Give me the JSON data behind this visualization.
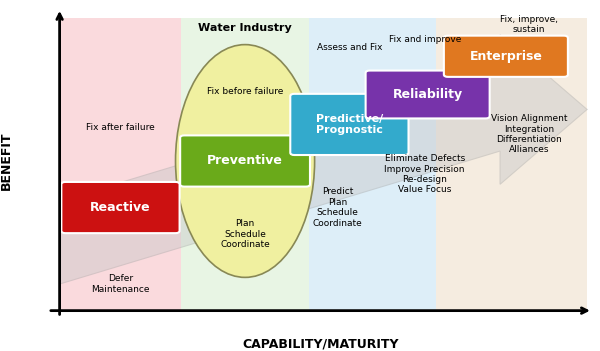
{
  "fig_width": 6.0,
  "fig_height": 3.51,
  "dpi": 100,
  "bg_color": "#ffffff",
  "zone_colors": [
    "#fadadd",
    "#e8f5e4",
    "#ddeef8",
    "#f5ece0"
  ],
  "arrow_color": "#c8c8c8",
  "arrow_edge": "#aaaaaa",
  "reactive_color": "#cc1111",
  "preventive_color": "#6aaa1a",
  "predictive_color": "#33aacc",
  "reliability_color": "#7733aa",
  "enterprise_color": "#e07820",
  "ellipse_color": "#f0f0a0",
  "ellipse_edge": "#888855",
  "xlabel": "CAPABILITY/MATURITY",
  "ylabel": "BENEFIT",
  "title_water": "Water Industry",
  "label_reactive": "Reactive",
  "label_preventive": "Preventive",
  "label_predictive": "Predictive/\nPrognostic",
  "label_reliability": "Reliability",
  "label_enterprise": "Enterprise",
  "text_fix_after": "Fix after failure",
  "text_defer": "Defer\nMaintenance",
  "text_fix_before": "Fix before failure",
  "text_plan1": "Plan\nSchedule\nCoordinate",
  "text_assess": "Assess and Fix",
  "text_predict": "Predict\nPlan\nSchedule\nCoordinate",
  "text_fix_improve": "Fix and improve",
  "text_elim": "Eliminate Defects\nImprove Precision\nRe-design\nValue Focus",
  "text_fix_improve_sustain": "Fix, improve,\nsustain",
  "text_vision": "Vision Alignment\nIntegration\nDifferentiation\nAlliances"
}
